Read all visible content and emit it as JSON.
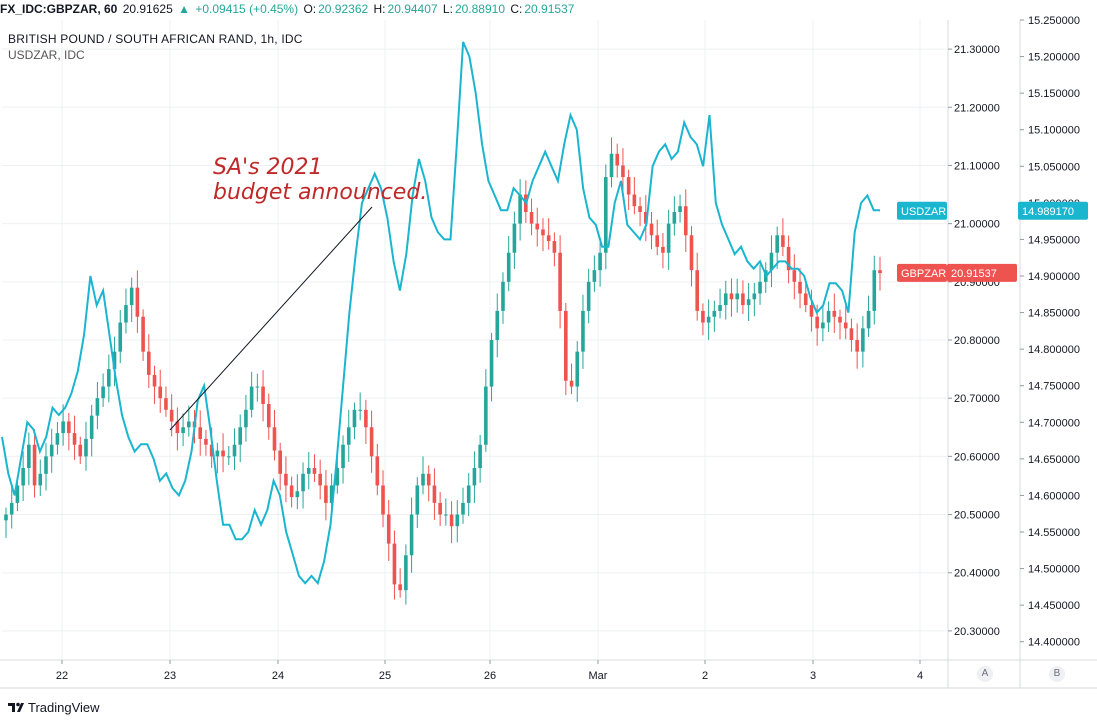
{
  "topbar": {
    "symbol": "FX_IDC:GBPZAR, 60",
    "last": "20.91625",
    "arrow": "▲",
    "change": "+0.09415 (+0.45%)",
    "o_label": "O:",
    "o": "20.92362",
    "h_label": "H:",
    "h": "20.94407",
    "l_label": "L:",
    "l": "20.88910",
    "c_label": "C:",
    "c": "20.91537"
  },
  "legend": {
    "main": "BRITISH POUND / SOUTH AFRICAN RAND, 1h, IDC",
    "sub": "USDZAR, IDC"
  },
  "annotation": {
    "line1": "SA's 2021",
    "line2": "budget announced."
  },
  "colors": {
    "up": "#26a69a",
    "down": "#ef5350",
    "usdzar": "#1ab6cf",
    "grid": "#eef0f3"
  },
  "footer": {
    "brand": "TradingView",
    "btn_a": "A",
    "btn_b": "B"
  },
  "chart_data": {
    "type": "candlestick",
    "title": "BRITISH POUND / SOUTH AFRICAN RAND, 1h, IDC",
    "x_labels": [
      "22",
      "23",
      "24",
      "25",
      "26",
      "Mar",
      "2",
      "3",
      "4"
    ],
    "grid": true,
    "left_axis": {
      "series": "GBPZAR",
      "range": [
        20.25,
        21.35
      ],
      "ticks": [
        "21.30000",
        "21.20000",
        "21.10000",
        "21.00000",
        "20.90000",
        "20.80000",
        "20.70000",
        "20.60000",
        "20.50000",
        "20.40000",
        "20.30000"
      ]
    },
    "right_axis": {
      "series": "USDZAR",
      "range": [
        14.375,
        15.25
      ],
      "ticks": [
        "15.250000",
        "15.200000",
        "15.150000",
        "15.100000",
        "15.050000",
        "15.000000",
        "14.950000",
        "14.900000",
        "14.850000",
        "14.800000",
        "14.750000",
        "14.700000",
        "14.650000",
        "14.600000",
        "14.550000",
        "14.500000",
        "14.450000",
        "14.400000"
      ]
    },
    "series": [
      {
        "name": "GBPZAR",
        "kind": "candlestick",
        "last_label": "GBPZAR",
        "last_value": "20.91537",
        "color_up": "#26a69a",
        "color_down": "#ef5350",
        "close": [
          20.5,
          20.52,
          20.55,
          20.58,
          20.62,
          20.55,
          20.57,
          20.6,
          20.62,
          20.64,
          20.66,
          20.64,
          20.62,
          20.6,
          20.63,
          20.67,
          20.7,
          20.72,
          20.75,
          20.78,
          20.83,
          20.86,
          20.89,
          20.84,
          20.78,
          20.74,
          20.72,
          20.7,
          20.68,
          20.66,
          20.64,
          20.65,
          20.66,
          20.65,
          20.63,
          20.62,
          20.6,
          20.61,
          20.6,
          20.6,
          20.62,
          20.65,
          20.68,
          20.72,
          20.72,
          20.69,
          20.65,
          20.61,
          20.57,
          20.55,
          20.53,
          20.54,
          20.57,
          20.58,
          20.57,
          20.55,
          20.52,
          20.55,
          20.58,
          20.62,
          20.65,
          20.68,
          20.68,
          20.65,
          20.6,
          20.55,
          20.5,
          20.45,
          20.38,
          20.37,
          20.43,
          20.5,
          20.55,
          20.57,
          20.55,
          20.52,
          20.5,
          20.5,
          20.48,
          20.5,
          20.52,
          20.55,
          20.58,
          20.62,
          20.72,
          20.8,
          20.85,
          20.9,
          20.95,
          21.0,
          21.05,
          21.02,
          21.0,
          20.99,
          20.98,
          20.97,
          20.95,
          20.85,
          20.73,
          20.72,
          20.78,
          20.85,
          20.9,
          20.92,
          20.95,
          21.08,
          21.12,
          21.1,
          21.08,
          21.05,
          21.03,
          21.02,
          21.0,
          20.98,
          20.96,
          20.95,
          21.0,
          21.02,
          21.03,
          20.98,
          20.92,
          20.85,
          20.83,
          20.84,
          20.85,
          20.86,
          20.88,
          20.87,
          20.88,
          20.86,
          20.87,
          20.88,
          20.9,
          20.92,
          20.95,
          20.98,
          20.96,
          20.92,
          20.9,
          20.88,
          20.86,
          20.84,
          20.82,
          20.83,
          20.85,
          20.84,
          20.83,
          20.82,
          20.8,
          20.78,
          20.82,
          20.85,
          20.92,
          20.915
        ]
      },
      {
        "name": "USDZAR",
        "kind": "line",
        "last_label": "USDZAR",
        "last_value": "14.989170",
        "color": "#1ab6cf",
        "values": [
          14.68,
          14.63,
          14.6,
          14.65,
          14.7,
          14.69,
          14.66,
          14.68,
          14.72,
          14.71,
          14.72,
          14.74,
          14.77,
          14.82,
          14.9,
          14.86,
          14.88,
          14.82,
          14.76,
          14.71,
          14.68,
          14.66,
          14.67,
          14.67,
          14.65,
          14.62,
          14.63,
          14.61,
          14.6,
          14.62,
          14.66,
          14.73,
          14.75,
          14.69,
          14.62,
          14.56,
          14.56,
          14.54,
          14.54,
          14.55,
          14.58,
          14.56,
          14.58,
          14.62,
          14.6,
          14.55,
          14.52,
          14.49,
          14.48,
          14.49,
          14.48,
          14.51,
          14.56,
          14.65,
          14.75,
          14.85,
          14.93,
          15.0,
          15.02,
          15.04,
          15.02,
          14.98,
          14.92,
          14.88,
          14.93,
          15.01,
          15.06,
          15.03,
          14.98,
          14.96,
          14.95,
          14.95,
          15.08,
          15.22,
          15.2,
          15.15,
          15.08,
          15.03,
          15.01,
          14.99,
          14.99,
          15.02,
          15.01,
          15.0,
          15.03,
          15.05,
          15.07,
          15.05,
          15.03,
          15.08,
          15.12,
          15.1,
          15.02,
          14.98,
          14.97,
          14.94,
          14.94,
          15.0,
          15.03,
          14.97,
          14.96,
          14.95,
          14.97,
          15.05,
          15.07,
          15.08,
          15.06,
          15.07,
          15.11,
          15.09,
          15.08,
          15.05,
          15.12,
          15.0,
          14.97,
          14.95,
          14.93,
          14.94,
          14.92,
          14.91,
          14.92,
          14.9,
          14.91,
          14.92,
          14.92,
          14.91,
          14.91,
          14.9,
          14.87,
          14.85,
          14.86,
          14.89,
          14.89,
          14.88,
          14.85,
          14.96,
          15.0,
          15.01,
          14.99,
          14.99
        ]
      }
    ]
  }
}
